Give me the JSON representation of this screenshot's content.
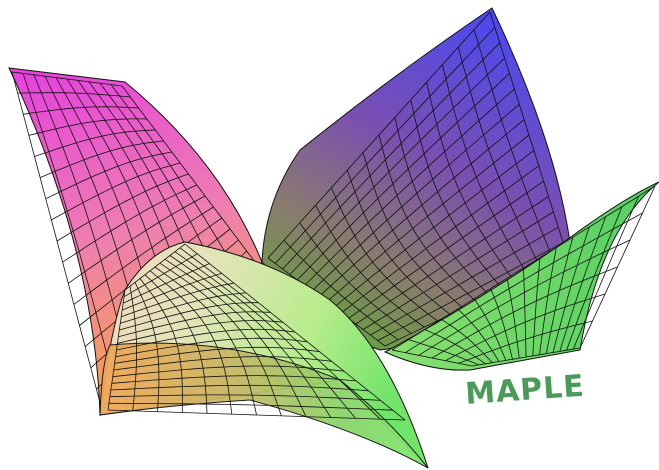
{
  "logo": {
    "text": "MAPLE",
    "color": "#4a9a5a"
  },
  "palette": {
    "left_petal": {
      "top": "#e84bdc",
      "bottom": "#f5a258"
    },
    "right_petal": {
      "top": "#4a4ef2",
      "mid": "#7a5a9a",
      "bottom": "#6aa84a"
    },
    "front_wave": {
      "left": "#f2cfa0",
      "center": "#d8e8a0",
      "right": "#6ee06a"
    },
    "grid": "#111111",
    "background": "#ffffff"
  }
}
